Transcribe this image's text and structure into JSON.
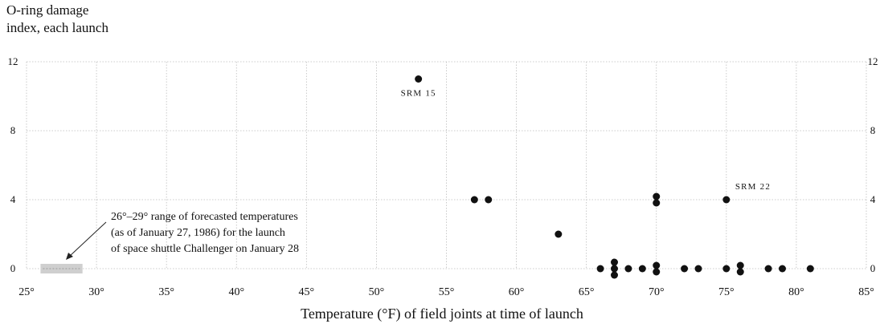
{
  "chart_data": {
    "type": "scatter",
    "title": "",
    "ylabel_lines": [
      "O-ring damage",
      "index, each launch"
    ],
    "xlabel": "Temperature (°F) of field joints at time of launch",
    "xlim": [
      25,
      85
    ],
    "ylim": [
      0,
      12
    ],
    "x_ticks": [
      {
        "value": 25,
        "label": "25°"
      },
      {
        "value": 30,
        "label": "30°"
      },
      {
        "value": 35,
        "label": "35°"
      },
      {
        "value": 40,
        "label": "40°"
      },
      {
        "value": 45,
        "label": "45°"
      },
      {
        "value": 50,
        "label": "50°"
      },
      {
        "value": 55,
        "label": "55°"
      },
      {
        "value": 60,
        "label": "60°"
      },
      {
        "value": 65,
        "label": "65°"
      },
      {
        "value": 70,
        "label": "70°"
      },
      {
        "value": 75,
        "label": "75°"
      },
      {
        "value": 80,
        "label": "80°"
      },
      {
        "value": 85,
        "label": "85°"
      }
    ],
    "y_ticks": [
      {
        "value": 0,
        "label": "0"
      },
      {
        "value": 4,
        "label": "4"
      },
      {
        "value": 8,
        "label": "8"
      },
      {
        "value": 12,
        "label": "12"
      }
    ],
    "grid": true,
    "points": [
      {
        "x": 53,
        "y": 11,
        "label": "SRM 15"
      },
      {
        "x": 57,
        "y": 4
      },
      {
        "x": 58,
        "y": 4
      },
      {
        "x": 63,
        "y": 2
      },
      {
        "x": 70,
        "y": 4
      },
      {
        "x": 70,
        "y": 4
      },
      {
        "x": 75,
        "y": 4,
        "label": "SRM 22"
      },
      {
        "x": 66,
        "y": 0
      },
      {
        "x": 67,
        "y": 0
      },
      {
        "x": 67,
        "y": 0
      },
      {
        "x": 67,
        "y": 0
      },
      {
        "x": 68,
        "y": 0
      },
      {
        "x": 69,
        "y": 0
      },
      {
        "x": 70,
        "y": 0
      },
      {
        "x": 70,
        "y": 0
      },
      {
        "x": 72,
        "y": 0
      },
      {
        "x": 73,
        "y": 0
      },
      {
        "x": 75,
        "y": 0
      },
      {
        "x": 76,
        "y": 0
      },
      {
        "x": 76,
        "y": 0
      },
      {
        "x": 78,
        "y": 0
      },
      {
        "x": 79,
        "y": 0
      },
      {
        "x": 81,
        "y": 0
      }
    ],
    "forecast_range": [
      26,
      29
    ],
    "annotation_lines": [
      "26°–29° range of forecasted temperatures",
      "(as of January 27, 1986) for the launch",
      "of space shuttle Challenger on January 28"
    ]
  }
}
